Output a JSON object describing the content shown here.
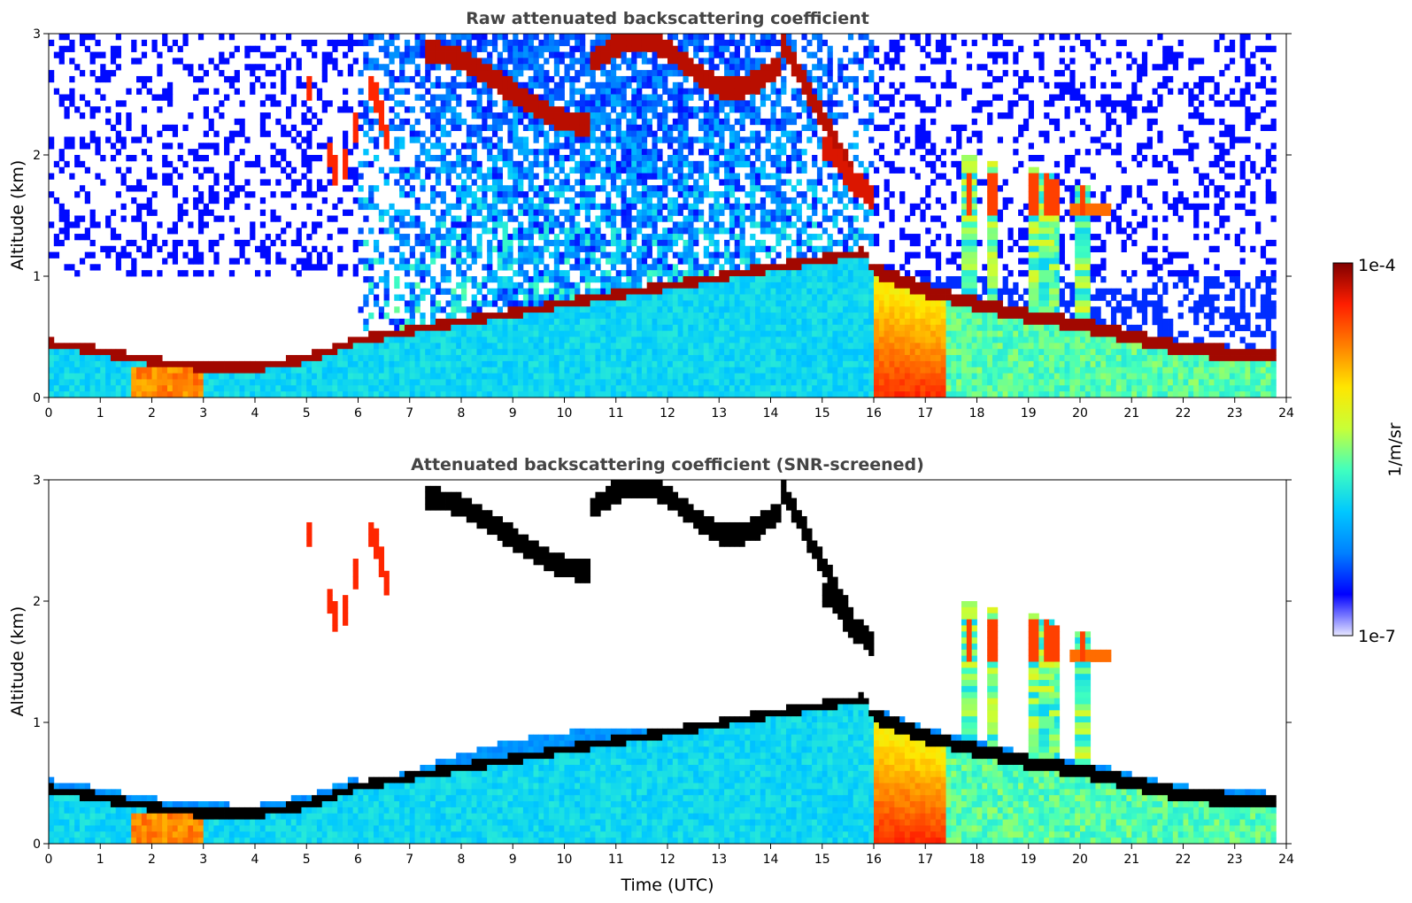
{
  "chart_data": [
    {
      "type": "heatmap",
      "title": "Raw attenuated backscattering coefficient",
      "xlabel": "",
      "ylabel": "Altitude (km)",
      "xlim": [
        0,
        24
      ],
      "ylim": [
        0,
        3
      ],
      "x_ticks": [
        "0",
        "1",
        "2",
        "3",
        "4",
        "5",
        "6",
        "7",
        "8",
        "9",
        "10",
        "11",
        "12",
        "13",
        "14",
        "15",
        "16",
        "17",
        "18",
        "19",
        "20",
        "21",
        "22",
        "23",
        "24"
      ],
      "y_ticks": [
        "0",
        "1",
        "2",
        "3"
      ],
      "grid": false,
      "screened": false,
      "layer_heights": [
        {
          "t": 0.0,
          "z": 0.45
        },
        {
          "t": 1.0,
          "z": 0.38
        },
        {
          "t": 2.0,
          "z": 0.3
        },
        {
          "t": 3.0,
          "z": 0.25
        },
        {
          "t": 4.0,
          "z": 0.24
        },
        {
          "t": 5.0,
          "z": 0.32
        },
        {
          "t": 6.0,
          "z": 0.47
        },
        {
          "t": 7.0,
          "z": 0.55
        },
        {
          "t": 15.8,
          "z": 1.2
        },
        {
          "t": 16.0,
          "z": 1.05
        },
        {
          "t": 17.0,
          "z": 0.88
        },
        {
          "t": 18.0,
          "z": 0.77
        },
        {
          "t": 19.0,
          "z": 0.67
        },
        {
          "t": 20.0,
          "z": 0.6
        },
        {
          "t": 21.0,
          "z": 0.5
        },
        {
          "t": 22.0,
          "z": 0.4
        },
        {
          "t": 23.0,
          "z": 0.36
        },
        {
          "t": 23.8,
          "z": 0.34
        }
      ]
    },
    {
      "type": "heatmap",
      "title": "Attenuated backscattering coefficient (SNR-screened)",
      "xlabel": "Time (UTC)",
      "ylabel": "Altitude (km)",
      "xlim": [
        0,
        24
      ],
      "ylim": [
        0,
        3
      ],
      "x_ticks": [
        "0",
        "1",
        "2",
        "3",
        "4",
        "5",
        "6",
        "7",
        "8",
        "9",
        "10",
        "11",
        "12",
        "13",
        "14",
        "15",
        "16",
        "17",
        "18",
        "19",
        "20",
        "21",
        "22",
        "23",
        "24"
      ],
      "y_ticks": [
        "0",
        "1",
        "2",
        "3"
      ],
      "grid": false,
      "screened": true
    }
  ],
  "colorbar": {
    "label": "1/m/sr",
    "max_label": "1e-4",
    "min_label": "1e-7",
    "colors": [
      "#e6e6ff",
      "#0000ff",
      "#0080ff",
      "#00c8ff",
      "#40ffbf",
      "#c8ff37",
      "#ffe600",
      "#ff8000",
      "#ff1e00",
      "#800000"
    ],
    "saturated_color": "#000000"
  }
}
